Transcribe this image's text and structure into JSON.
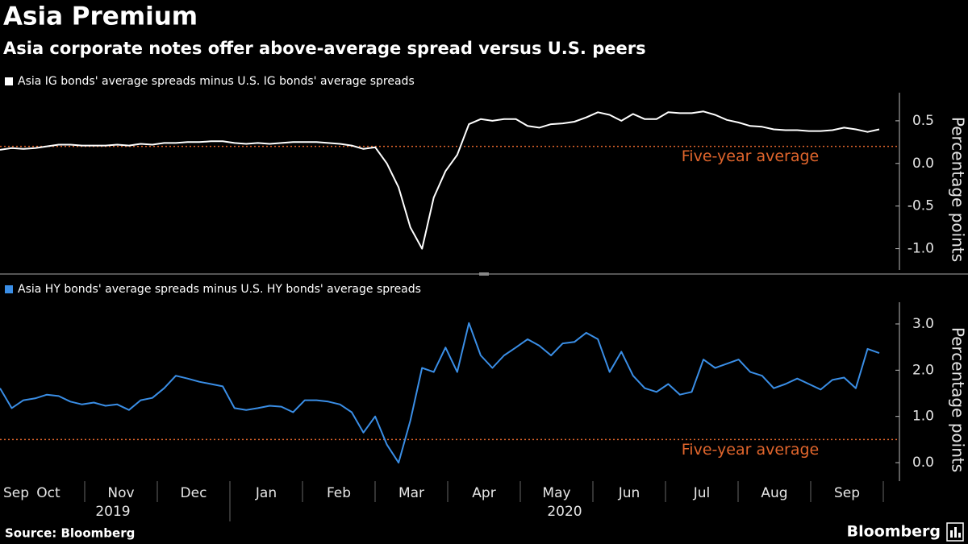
{
  "title": "Asia Premium",
  "subtitle": "Asia corporate notes offer above-average spread versus U.S. peers",
  "source": "Source: Bloomberg",
  "brand": "Bloomberg",
  "chart_data": [
    {
      "type": "line",
      "series": [
        {
          "name": "Asia IG bonds' average spreads minus U.S. IG bonds' average spreads",
          "color": "#ffffff",
          "values": [
            0.16,
            0.18,
            0.17,
            0.18,
            0.2,
            0.22,
            0.22,
            0.21,
            0.21,
            0.21,
            0.22,
            0.21,
            0.23,
            0.22,
            0.24,
            0.24,
            0.25,
            0.25,
            0.26,
            0.26,
            0.24,
            0.23,
            0.24,
            0.23,
            0.24,
            0.25,
            0.25,
            0.25,
            0.24,
            0.23,
            0.21,
            0.17,
            0.19,
            0.0,
            -0.28,
            -0.75,
            -1.0,
            -0.4,
            -0.09,
            0.1,
            0.46,
            0.52,
            0.5,
            0.52,
            0.52,
            0.44,
            0.42,
            0.46,
            0.47,
            0.49,
            0.54,
            0.6,
            0.57,
            0.5,
            0.58,
            0.52,
            0.52,
            0.6,
            0.59,
            0.59,
            0.61,
            0.57,
            0.51,
            0.48,
            0.44,
            0.43,
            0.4,
            0.39,
            0.39,
            0.38,
            0.38,
            0.39,
            0.42,
            0.4,
            0.37,
            0.4
          ]
        }
      ],
      "ylim": [
        -1.25,
        0.83
      ],
      "yticks": [
        {
          "value": -1.0,
          "label": "-1.0"
        },
        -0.5,
        {
          "value": 0.0,
          "label": "0.0"
        },
        0.5
      ],
      "y_label": "Percentage points",
      "reference_line": {
        "value": 0.2,
        "label": "Five-year average",
        "color": "#e0652c"
      },
      "grid": false
    },
    {
      "type": "line",
      "series": [
        {
          "name": "Asia HY bonds' average spreads minus U.S. HY bonds' average spreads",
          "color": "#3a8ee6",
          "values": [
            1.61,
            1.18,
            1.35,
            1.39,
            1.47,
            1.44,
            1.32,
            1.26,
            1.3,
            1.23,
            1.26,
            1.14,
            1.35,
            1.4,
            1.61,
            1.88,
            1.82,
            1.75,
            1.7,
            1.65,
            1.18,
            1.14,
            1.18,
            1.23,
            1.21,
            1.09,
            1.35,
            1.35,
            1.32,
            1.26,
            1.09,
            0.65,
            1.0,
            0.39,
            0.0,
            0.91,
            2.05,
            1.96,
            2.49,
            1.96,
            3.02,
            2.32,
            2.05,
            2.32,
            2.49,
            2.67,
            2.53,
            2.32,
            2.58,
            2.61,
            2.81,
            2.67,
            1.96,
            2.4,
            1.88,
            1.61,
            1.53,
            1.7,
            1.47,
            1.53,
            2.23,
            2.05,
            2.14,
            2.23,
            1.96,
            1.88,
            1.61,
            1.7,
            1.82,
            1.7,
            1.58,
            1.79,
            1.84,
            1.61,
            2.46,
            2.37
          ]
        }
      ],
      "ylim": [
        -0.4,
        3.47
      ],
      "yticks": [
        {
          "value": 0.0,
          "label": "0.0"
        },
        {
          "value": 1.0,
          "label": "1.0"
        },
        {
          "value": 2.0,
          "label": "2.0"
        },
        {
          "value": 3.0,
          "label": "3.0"
        }
      ],
      "y_label": "Percentage points",
      "reference_line": {
        "value": 0.5,
        "label": "Five-year average",
        "color": "#e0652c"
      },
      "grid": false,
      "month_labels": [
        "Sep",
        "Oct",
        "Nov",
        "Dec",
        "Jan",
        "Feb",
        "Mar",
        "Apr",
        "May",
        "Jun",
        "Jul",
        "Aug",
        "Sep"
      ],
      "year_labels": [
        "2019",
        "2020"
      ]
    }
  ]
}
